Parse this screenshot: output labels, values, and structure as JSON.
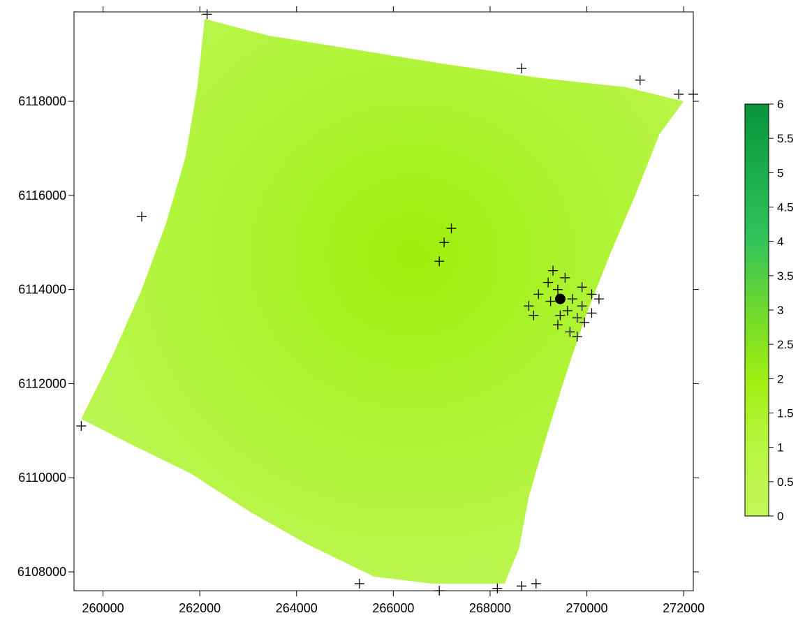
{
  "map": {
    "type": "contour-map",
    "xlim": [
      259400,
      272200
    ],
    "ylim": [
      6107600,
      6119900
    ],
    "x_ticks": [
      {
        "value": 260000,
        "label": "260000"
      },
      {
        "value": 262000,
        "label": "262000"
      },
      {
        "value": 264000,
        "label": "264000"
      },
      {
        "value": 266000,
        "label": "266000"
      },
      {
        "value": 268000,
        "label": "268000"
      },
      {
        "value": 270000,
        "label": "270000"
      },
      {
        "value": 272000,
        "label": "272000"
      }
    ],
    "y_ticks": [
      {
        "value": 6108000,
        "label": "6108000"
      },
      {
        "value": 6110000,
        "label": "6110000"
      },
      {
        "value": 6112000,
        "label": "6112000"
      },
      {
        "value": 6114000,
        "label": "6114000"
      },
      {
        "value": 6116000,
        "label": "6116000"
      },
      {
        "value": 6118000,
        "label": "6118000"
      }
    ],
    "surface_polygon": [
      [
        262100,
        6119750
      ],
      [
        263400,
        6119400
      ],
      [
        265200,
        6119100
      ],
      [
        267000,
        6118800
      ],
      [
        269000,
        6118500
      ],
      [
        270800,
        6118300
      ],
      [
        272000,
        6118000
      ],
      [
        271500,
        6117300
      ],
      [
        271000,
        6116000
      ],
      [
        270500,
        6114800
      ],
      [
        270000,
        6113500
      ],
      [
        269600,
        6112300
      ],
      [
        269200,
        6111000
      ],
      [
        268800,
        6109600
      ],
      [
        268600,
        6108500
      ],
      [
        268300,
        6107750
      ],
      [
        266800,
        6107750
      ],
      [
        265600,
        6107900
      ],
      [
        264200,
        6108600
      ],
      [
        263000,
        6109300
      ],
      [
        261800,
        6110100
      ],
      [
        260600,
        6110700
      ],
      [
        259550,
        6111250
      ],
      [
        260200,
        6112600
      ],
      [
        260800,
        6114000
      ],
      [
        261300,
        6115400
      ],
      [
        261700,
        6116800
      ],
      [
        261950,
        6118300
      ]
    ],
    "sample_points": [
      [
        262150,
        6119850
      ],
      [
        260800,
        6115550
      ],
      [
        268650,
        6118700
      ],
      [
        271100,
        6118450
      ],
      [
        271900,
        6118150
      ],
      [
        272200,
        6118150
      ],
      [
        259550,
        6111100
      ],
      [
        267200,
        6115300
      ],
      [
        267050,
        6115000
      ],
      [
        266950,
        6114600
      ],
      [
        269300,
        6114400
      ],
      [
        269550,
        6114250
      ],
      [
        269200,
        6114150
      ],
      [
        269400,
        6114000
      ],
      [
        269000,
        6113900
      ],
      [
        268800,
        6113650
      ],
      [
        269250,
        6113750
      ],
      [
        269700,
        6113800
      ],
      [
        269900,
        6114050
      ],
      [
        270100,
        6113900
      ],
      [
        270250,
        6113800
      ],
      [
        269900,
        6113650
      ],
      [
        269600,
        6113550
      ],
      [
        269450,
        6113450
      ],
      [
        268900,
        6113450
      ],
      [
        270100,
        6113500
      ],
      [
        269800,
        6113400
      ],
      [
        269400,
        6113250
      ],
      [
        269650,
        6113100
      ],
      [
        269950,
        6113300
      ],
      [
        269800,
        6113000
      ],
      [
        265300,
        6107750
      ],
      [
        266950,
        6107600
      ],
      [
        268150,
        6107650
      ],
      [
        268650,
        6107700
      ],
      [
        268950,
        6107750
      ]
    ],
    "highlight_point": [
      269450,
      6113800
    ],
    "colorbar": {
      "min": 0,
      "max": 6,
      "colors": [
        "#c3f65a",
        "#b6f43e",
        "#9eee0c",
        "#2fbd5c",
        "#0a9337"
      ],
      "ticks": [
        {
          "value": 0,
          "label": "0"
        },
        {
          "value": 0.5,
          "label": "0.5"
        },
        {
          "value": 1,
          "label": "1"
        },
        {
          "value": 1.5,
          "label": "1.5"
        },
        {
          "value": 2,
          "label": "2"
        },
        {
          "value": 2.5,
          "label": "2.5"
        },
        {
          "value": 3,
          "label": "3"
        },
        {
          "value": 3.5,
          "label": "3.5"
        },
        {
          "value": 4,
          "label": "4"
        },
        {
          "value": 4.5,
          "label": "4.5"
        },
        {
          "value": 5,
          "label": "5"
        },
        {
          "value": 5.5,
          "label": "5.5"
        },
        {
          "value": 6,
          "label": "6"
        }
      ]
    }
  }
}
